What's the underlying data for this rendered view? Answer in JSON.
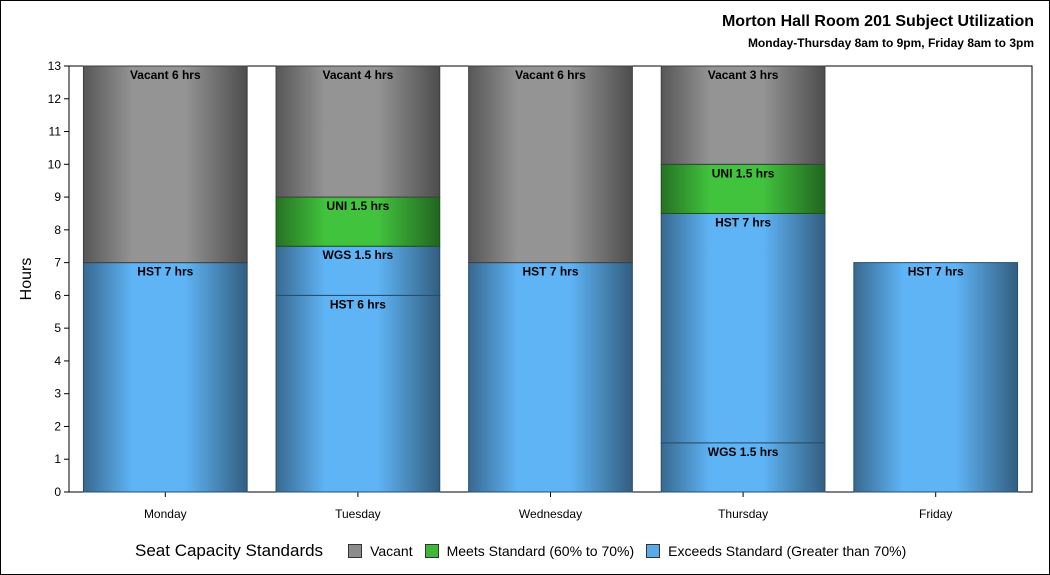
{
  "chart_data": {
    "type": "bar",
    "stacked": true,
    "title": "Morton Hall Room 201 Subject Utilization",
    "subtitle": "Monday-Thursday 8am to 9pm, Friday 8am to 3pm",
    "ylabel": "Hours",
    "xlabel": "",
    "ylim": [
      0,
      13
    ],
    "yticks": [
      0,
      1,
      2,
      3,
      4,
      5,
      6,
      7,
      8,
      9,
      10,
      11,
      12,
      13
    ],
    "categories": [
      "Monday",
      "Tuesday",
      "Wednesday",
      "Thursday",
      "Friday"
    ],
    "legend": {
      "title": "Seat Capacity Standards",
      "position": "bottom",
      "items": [
        {
          "key": "vacant",
          "label": "Vacant",
          "color": "#8c8c8c"
        },
        {
          "key": "meets",
          "label": "Meets Standard (60% to 70%)",
          "color": "#3db83a"
        },
        {
          "key": "exceeds",
          "label": "Exceeds Standard (Greater than 70%)",
          "color": "#5aaae8"
        }
      ]
    },
    "bars": [
      {
        "category": "Monday",
        "segments": [
          {
            "label": "HST 7 hrs",
            "value": 7,
            "standard": "exceeds"
          },
          {
            "label": "Vacant 6 hrs",
            "value": 6,
            "standard": "vacant"
          }
        ]
      },
      {
        "category": "Tuesday",
        "segments": [
          {
            "label": "HST 6 hrs",
            "value": 6,
            "standard": "exceeds"
          },
          {
            "label": "WGS 1.5 hrs",
            "value": 1.5,
            "standard": "exceeds"
          },
          {
            "label": "UNI 1.5 hrs",
            "value": 1.5,
            "standard": "meets"
          },
          {
            "label": "Vacant 4 hrs",
            "value": 4,
            "standard": "vacant"
          }
        ]
      },
      {
        "category": "Wednesday",
        "segments": [
          {
            "label": "HST 7 hrs",
            "value": 7,
            "standard": "exceeds"
          },
          {
            "label": "Vacant 6 hrs",
            "value": 6,
            "standard": "vacant"
          }
        ]
      },
      {
        "category": "Thursday",
        "segments": [
          {
            "label": "WGS 1.5 hrs",
            "value": 1.5,
            "standard": "exceeds"
          },
          {
            "label": "HST 7 hrs",
            "value": 7,
            "standard": "exceeds"
          },
          {
            "label": "UNI 1.5 hrs",
            "value": 1.5,
            "standard": "meets"
          },
          {
            "label": "Vacant 3 hrs",
            "value": 3,
            "standard": "vacant"
          }
        ]
      },
      {
        "category": "Friday",
        "segments": [
          {
            "label": "HST 7 hrs",
            "value": 7,
            "standard": "exceeds"
          }
        ]
      }
    ]
  }
}
